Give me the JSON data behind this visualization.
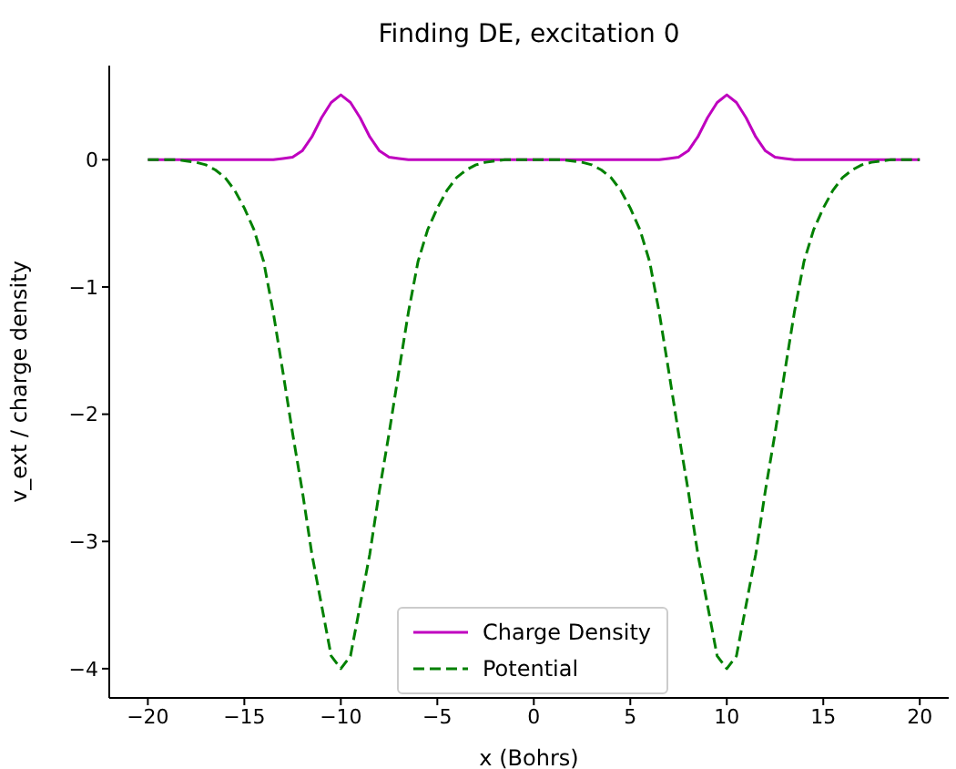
{
  "chart_data": {
    "type": "line",
    "title": "Finding DE, excitation 0",
    "xlabel": "x (Bohrs)",
    "ylabel": "v_ext / charge density",
    "x": [
      -20,
      -19.5,
      -19,
      -18.5,
      -18,
      -17.5,
      -17,
      -16.5,
      -16,
      -15.5,
      -15,
      -14.5,
      -14,
      -13.5,
      -13,
      -12.5,
      -12,
      -11.5,
      -11,
      -10.5,
      -10,
      -9.5,
      -9,
      -8.5,
      -8,
      -7.5,
      -7,
      -6.5,
      -6,
      -5.5,
      -5,
      -4.5,
      -4,
      -3.5,
      -3,
      -2.5,
      -2,
      -1.5,
      -1,
      -0.5,
      0,
      0.5,
      1,
      1.5,
      2,
      2.5,
      3,
      3.5,
      4,
      4.5,
      5,
      5.5,
      6,
      6.5,
      7,
      7.5,
      8,
      8.5,
      9,
      9.5,
      10,
      10.5,
      11,
      11.5,
      12,
      12.5,
      13,
      13.5,
      14,
      14.5,
      15,
      15.5,
      16,
      16.5,
      17,
      17.5,
      18,
      18.5,
      19,
      19.5,
      20
    ],
    "series": [
      {
        "name": "Charge Density",
        "color": "#bf00bf",
        "line_style": "solid",
        "values": [
          0,
          0,
          0,
          0,
          0,
          0,
          0,
          0,
          0,
          0,
          0,
          0,
          0,
          0,
          0.01,
          0.02,
          0.07,
          0.18,
          0.33,
          0.45,
          0.51,
          0.45,
          0.33,
          0.18,
          0.07,
          0.02,
          0.01,
          0,
          0,
          0,
          0,
          0,
          0,
          0,
          0,
          0,
          0,
          0,
          0,
          0,
          0,
          0,
          0,
          0,
          0,
          0,
          0,
          0,
          0,
          0,
          0,
          0,
          0,
          0,
          0.01,
          0.02,
          0.07,
          0.18,
          0.33,
          0.45,
          0.51,
          0.45,
          0.33,
          0.18,
          0.07,
          0.02,
          0.01,
          0,
          0,
          0,
          0,
          0,
          0,
          0,
          0,
          0,
          0,
          0,
          0,
          0,
          0
        ]
      },
      {
        "name": "Potential",
        "color": "#008000",
        "line_style": "dashed",
        "values": [
          0,
          0,
          0,
          0,
          -0.01,
          -0.02,
          -0.04,
          -0.08,
          -0.14,
          -0.24,
          -0.38,
          -0.55,
          -0.8,
          -1.2,
          -1.67,
          -2.15,
          -2.6,
          -3.1,
          -3.5,
          -3.9,
          -4,
          -3.9,
          -3.5,
          -3.1,
          -2.6,
          -2.15,
          -1.67,
          -1.2,
          -0.8,
          -0.55,
          -0.38,
          -0.24,
          -0.14,
          -0.08,
          -0.04,
          -0.02,
          -0.01,
          0,
          0,
          0,
          0,
          0,
          0,
          0,
          -0.01,
          -0.02,
          -0.04,
          -0.08,
          -0.14,
          -0.24,
          -0.38,
          -0.55,
          -0.8,
          -1.2,
          -1.67,
          -2.15,
          -2.6,
          -3.1,
          -3.5,
          -3.9,
          -4,
          -3.9,
          -3.5,
          -3.1,
          -2.6,
          -2.15,
          -1.67,
          -1.2,
          -0.8,
          -0.55,
          -0.38,
          -0.24,
          -0.14,
          -0.08,
          -0.04,
          -0.02,
          -0.01,
          0,
          0,
          0,
          0
        ]
      }
    ],
    "xlim": [
      -22,
      21.5
    ],
    "xticks": [
      -20,
      -15,
      -10,
      -5,
      0,
      5,
      10,
      15,
      20
    ],
    "ylim": [
      -4.23,
      0.74
    ],
    "yticks": [
      -4,
      -3,
      -2,
      -1,
      0
    ],
    "legend": "bottom"
  }
}
